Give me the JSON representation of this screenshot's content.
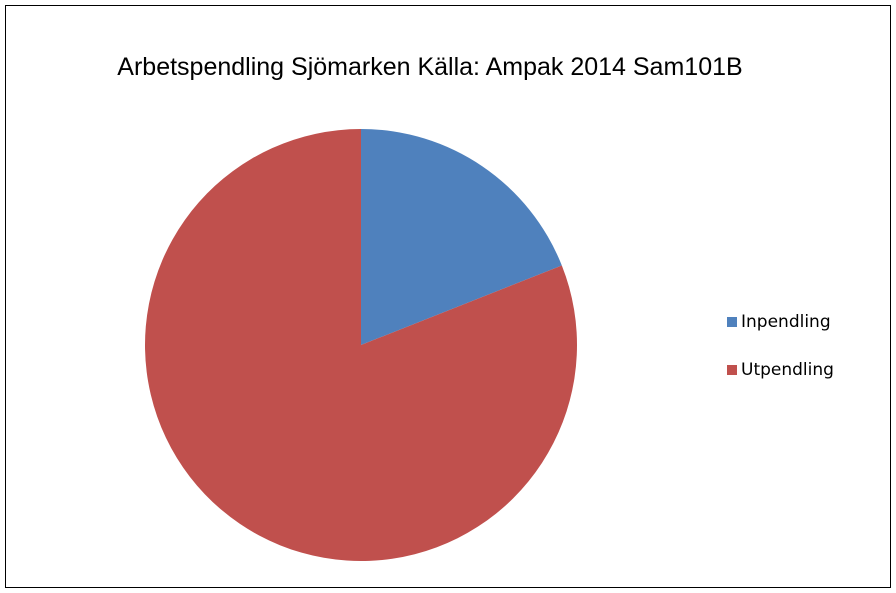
{
  "chart_data": {
    "type": "pie",
    "title": "Arbetspendling Sjömarken Källa: Ampak 2014 Sam101B",
    "categories": [
      "Inpendling",
      "Utpendling"
    ],
    "values": [
      19,
      81
    ],
    "colors": [
      "#4f81bd",
      "#c0504d"
    ],
    "legend": "right"
  }
}
